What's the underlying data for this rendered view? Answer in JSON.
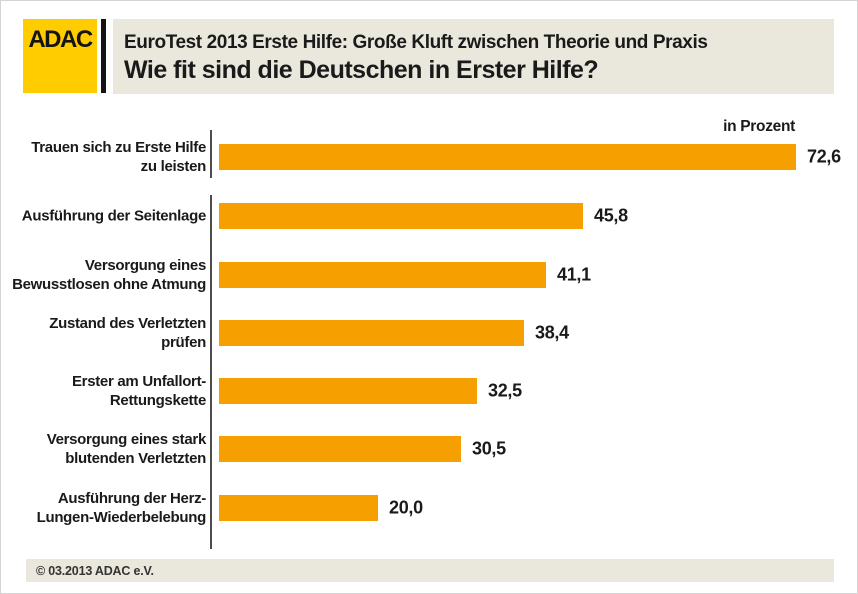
{
  "logo": {
    "text": "ADAC"
  },
  "header": {
    "subtitle": "EuroTest 2013 Erste Hilfe: Große Kluft zwischen Theorie und Praxis",
    "title": "Wie fit sind die Deutschen in Erster Hilfe?"
  },
  "footer": {
    "copyright": "© 03.2013  ADAC e.V."
  },
  "colors": {
    "bar": "#F5A000",
    "logo_yellow": "#FFCC00",
    "panel_beige": "#EAE7DC",
    "axis": "#4D4D4D",
    "text": "#1A1A1A"
  },
  "chart_data": {
    "type": "bar",
    "orientation": "horizontal",
    "title": "Wie fit sind die Deutschen in Erster Hilfe?",
    "subtitle": "EuroTest 2013 Erste Hilfe: Große Kluft zwischen Theorie und Praxis",
    "xlabel": "in Prozent",
    "xlim": [
      0,
      80
    ],
    "grid": false,
    "legend": "none",
    "bar_color": "#F5A000",
    "categories": [
      "Trauen sich zu Erste Hilfe zu leisten",
      "Ausführung der Seitenlage",
      "Versorgung eines Bewusstlosen ohne Atmung",
      "Zustand des Verletzten prüfen",
      "Erster am Unfallort-Rettungskette",
      "Versorgung eines stark blutenden Verletzten",
      "Ausführung der Herz-Lungen-Wiederbelebung"
    ],
    "categories_wrapped": [
      [
        "Trauen sich zu Erste Hilfe",
        "zu leisten"
      ],
      [
        "Ausführung der Seitenlage"
      ],
      [
        "Versorgung eines",
        "Bewusstlosen ohne Atmung"
      ],
      [
        "Zustand des Verletzten",
        "prüfen"
      ],
      [
        "Erster am Unfallort-",
        "Rettungskette"
      ],
      [
        "Versorgung eines stark",
        "blutenden Verletzten"
      ],
      [
        "Ausführung der Herz-",
        "Lungen-Wiederbelebung"
      ]
    ],
    "values": [
      72.6,
      45.8,
      41.1,
      38.4,
      32.5,
      30.5,
      20.0
    ],
    "value_labels": [
      "72,6",
      "45,8",
      "41,1",
      "38,4",
      "32,5",
      "30,5",
      "20,0"
    ]
  }
}
